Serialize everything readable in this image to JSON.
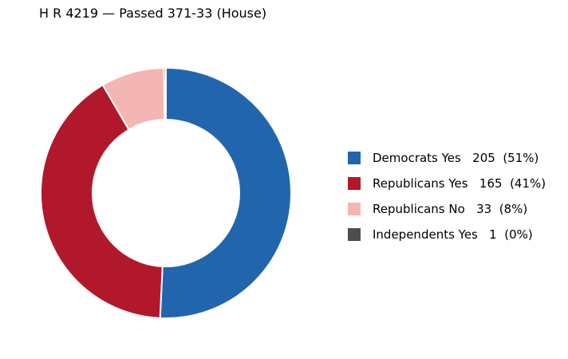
{
  "chart_data": {
    "type": "pie",
    "style": "donut",
    "title": "H R 4219 — Passed 371-33 (House)",
    "slices": [
      {
        "label": "Democrats Yes",
        "value": 205,
        "percent": "51%",
        "color": "#2166ac"
      },
      {
        "label": "Republicans Yes",
        "value": 165,
        "percent": "41%",
        "color": "#b2182b"
      },
      {
        "label": "Republicans No",
        "value": 33,
        "percent": "8%",
        "color": "#f4b6b2"
      },
      {
        "label": "Independents Yes",
        "value": 1,
        "percent": "0%",
        "color": "#4d4d4d"
      }
    ],
    "legend_entries": [
      "Democrats Yes   205  (51%)",
      "Republicans Yes   165  (41%)",
      "Republicans No   33  (8%)",
      "Independents Yes   1  (0%)"
    ],
    "legend_position": "right",
    "start_angle": "12 o'clock",
    "direction": "clockwise"
  }
}
